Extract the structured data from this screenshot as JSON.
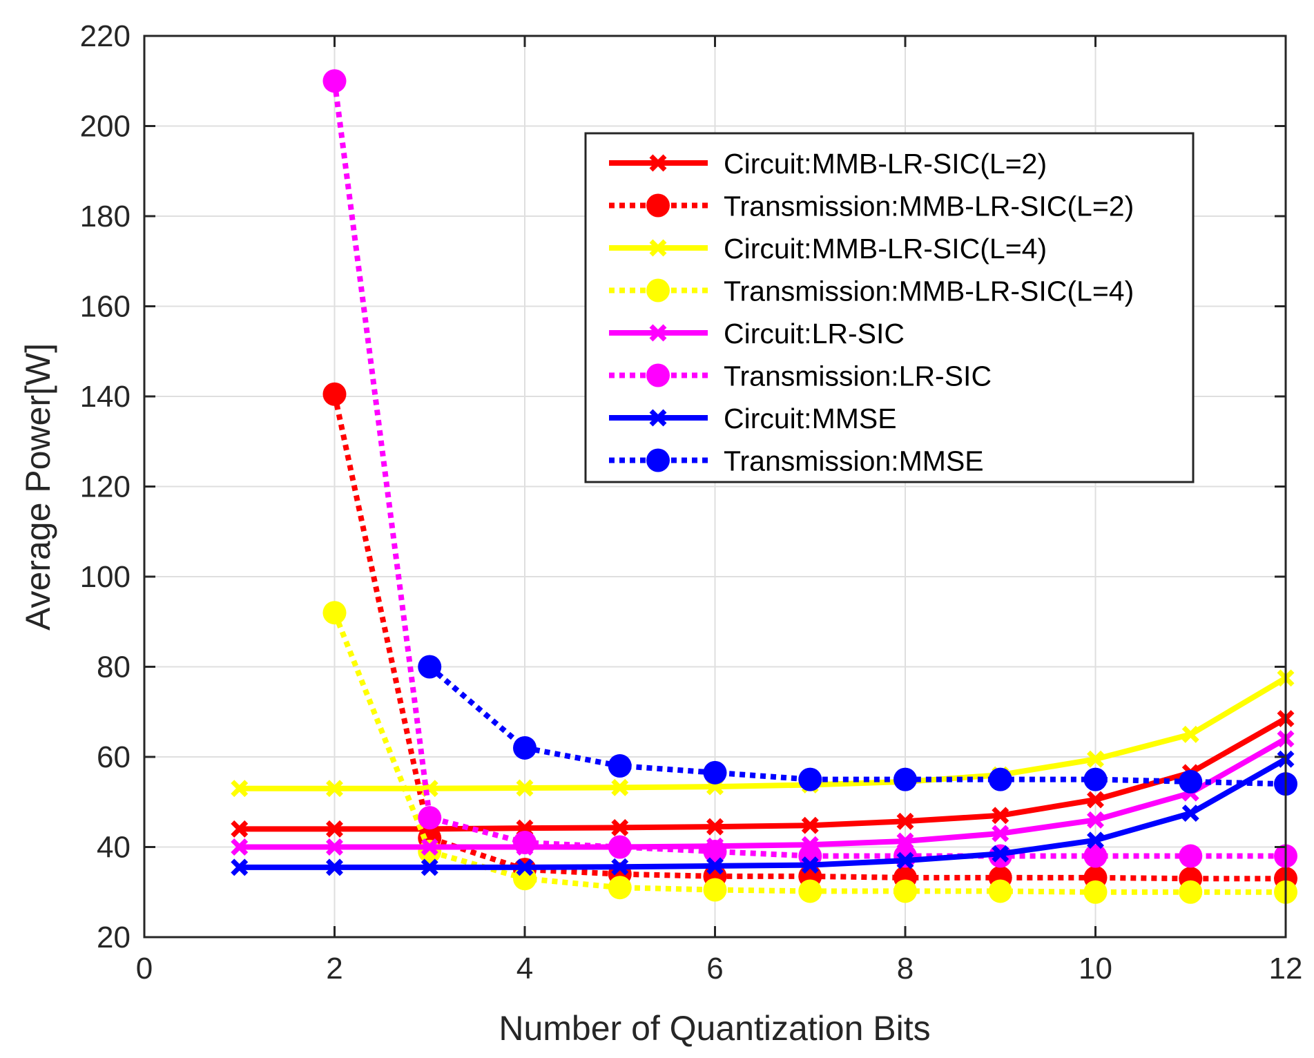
{
  "chart_data": {
    "type": "line",
    "title": "",
    "xlabel": "Number of Quantization Bits",
    "ylabel": "Average Power[W]",
    "xlim": [
      0,
      12
    ],
    "ylim": [
      20,
      220
    ],
    "xticks": [
      0,
      2,
      4,
      6,
      8,
      10,
      12
    ],
    "yticks": [
      20,
      40,
      60,
      80,
      100,
      120,
      140,
      160,
      180,
      200,
      220
    ],
    "grid": true,
    "legend_position": "top-right",
    "series": [
      {
        "name": "Circuit:MMB-LR-SIC(L=2)",
        "color": "#ff0000",
        "style": "solid",
        "marker": "x",
        "x": [
          1,
          2,
          3,
          4,
          5,
          6,
          7,
          8,
          9,
          10,
          11,
          12
        ],
        "values": [
          44,
          44,
          44,
          44.2,
          44.3,
          44.5,
          44.8,
          45.7,
          47,
          50.5,
          56.5,
          68.5
        ]
      },
      {
        "name": "Transmission:MMB-LR-SIC(L=2)",
        "color": "#ff0000",
        "style": "dotted",
        "marker": "o",
        "x": [
          2,
          3,
          4,
          5,
          6,
          7,
          8,
          9,
          10,
          11,
          12
        ],
        "values": [
          140.5,
          42,
          35,
          34,
          33.5,
          33.5,
          33.2,
          33.2,
          33.2,
          33,
          33
        ]
      },
      {
        "name": "Circuit:MMB-LR-SIC(L=4)",
        "color": "#ffff00",
        "style": "solid",
        "marker": "x",
        "x": [
          1,
          2,
          3,
          4,
          5,
          6,
          7,
          8,
          9,
          10,
          11,
          12
        ],
        "values": [
          53,
          53,
          53,
          53.1,
          53.2,
          53.4,
          53.8,
          54.5,
          56,
          59.5,
          65,
          77.5
        ]
      },
      {
        "name": "Transmission:MMB-LR-SIC(L=4)",
        "color": "#ffff00",
        "style": "dotted",
        "marker": "o",
        "x": [
          2,
          3,
          4,
          5,
          6,
          7,
          8,
          9,
          10,
          11,
          12
        ],
        "values": [
          92,
          39,
          33,
          31,
          30.5,
          30.2,
          30.2,
          30.2,
          30,
          30,
          30
        ]
      },
      {
        "name": "Circuit:LR-SIC",
        "color": "#ff00ff",
        "style": "solid",
        "marker": "x",
        "x": [
          1,
          2,
          3,
          4,
          5,
          6,
          7,
          8,
          9,
          10,
          11,
          12
        ],
        "values": [
          40,
          40,
          40,
          40,
          40,
          40.2,
          40.5,
          41.3,
          43,
          46,
          52,
          64
        ]
      },
      {
        "name": "Transmission:LR-SIC",
        "color": "#ff00ff",
        "style": "dotted",
        "marker": "o",
        "x": [
          2,
          3,
          4,
          5,
          6,
          7,
          8,
          9,
          10,
          11,
          12
        ],
        "values": [
          210,
          46.5,
          41,
          40,
          39,
          38,
          38,
          38,
          38,
          38,
          38
        ]
      },
      {
        "name": "Circuit:MMSE",
        "color": "#0000ff",
        "style": "solid",
        "marker": "x",
        "x": [
          1,
          2,
          3,
          4,
          5,
          6,
          7,
          8,
          9,
          10,
          11,
          12
        ],
        "values": [
          35.5,
          35.5,
          35.5,
          35.5,
          35.6,
          35.8,
          36,
          37,
          38.5,
          41.5,
          47.5,
          59.5
        ]
      },
      {
        "name": "Transmission:MMSE",
        "color": "#0000ff",
        "style": "dotted",
        "marker": "o",
        "x": [
          3,
          4,
          5,
          6,
          7,
          8,
          9,
          10,
          11,
          12
        ],
        "values": [
          80,
          62,
          58,
          56.5,
          55,
          55,
          55,
          55,
          54.5,
          54
        ]
      }
    ]
  }
}
